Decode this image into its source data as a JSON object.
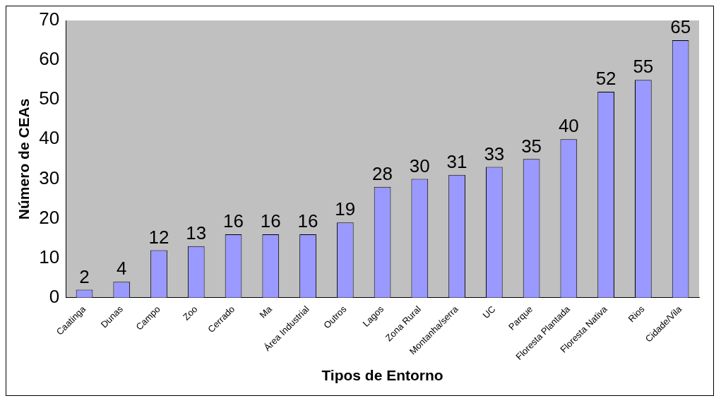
{
  "chart_data": {
    "type": "bar",
    "xlabel": "Tipos de Entorno",
    "ylabel": "Número de CEAs",
    "categories": [
      "Caatinga",
      "Dunas",
      "Campo",
      "Zoo",
      "Cerrado",
      "Ma",
      "Área Industrial",
      "Outros",
      "Lagos",
      "Zona Rural",
      "Montanha/serra",
      "UC",
      "Parque",
      "Floresta Plantada",
      "Floresta Nativa",
      "Rios",
      "Cidade/Vila"
    ],
    "values": [
      2,
      4,
      12,
      13,
      16,
      16,
      16,
      19,
      28,
      30,
      31,
      33,
      35,
      40,
      52,
      55,
      65
    ],
    "color": "#9999ff",
    "ylim": [
      0,
      70
    ],
    "yticks": [
      0,
      10,
      20,
      30,
      40,
      50,
      60,
      70
    ],
    "grid": false,
    "legend": false,
    "data_labels": true
  }
}
